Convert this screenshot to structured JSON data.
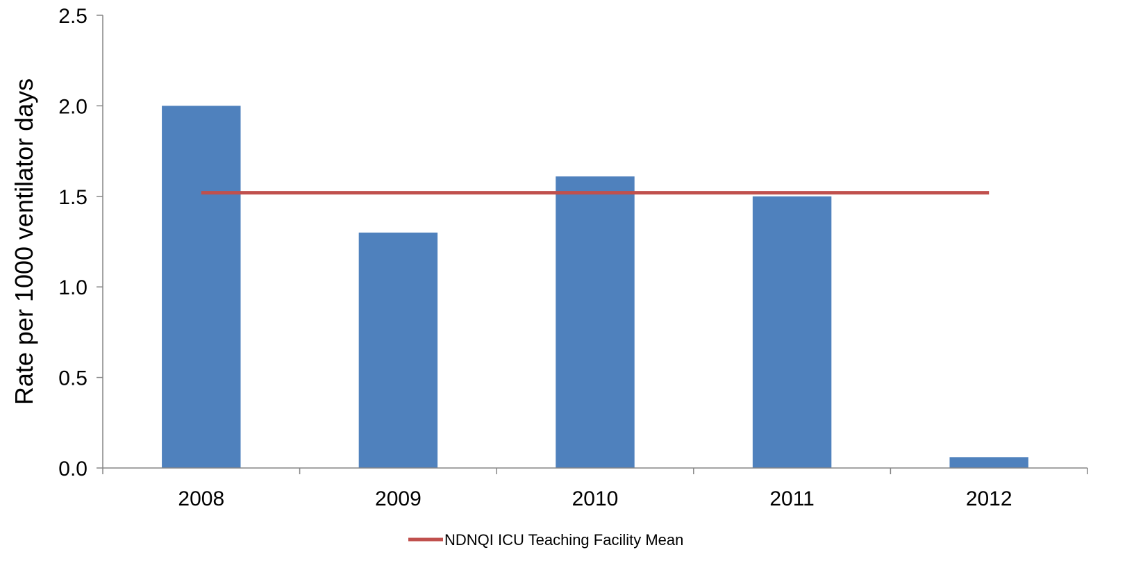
{
  "chart_data": {
    "type": "bar",
    "categories": [
      "2008",
      "2009",
      "2010",
      "2011",
      "2012"
    ],
    "series": [
      {
        "values": [
          2.0,
          1.3,
          1.61,
          1.5,
          0.06
        ],
        "color": "#4f81bd"
      }
    ],
    "reference_line": {
      "name": "NDNQI ICU Teaching Facility Mean",
      "value": 1.52,
      "color": "#c0504d"
    },
    "ylabel": "Rate per 1000 ventilator days",
    "xlabel": "",
    "ylim": [
      0,
      2.5
    ],
    "yticks": [
      "0.0",
      "0.5",
      "1.0",
      "1.5",
      "2.0",
      "2.5"
    ],
    "grid": false,
    "legend_position": "bottom-center"
  }
}
